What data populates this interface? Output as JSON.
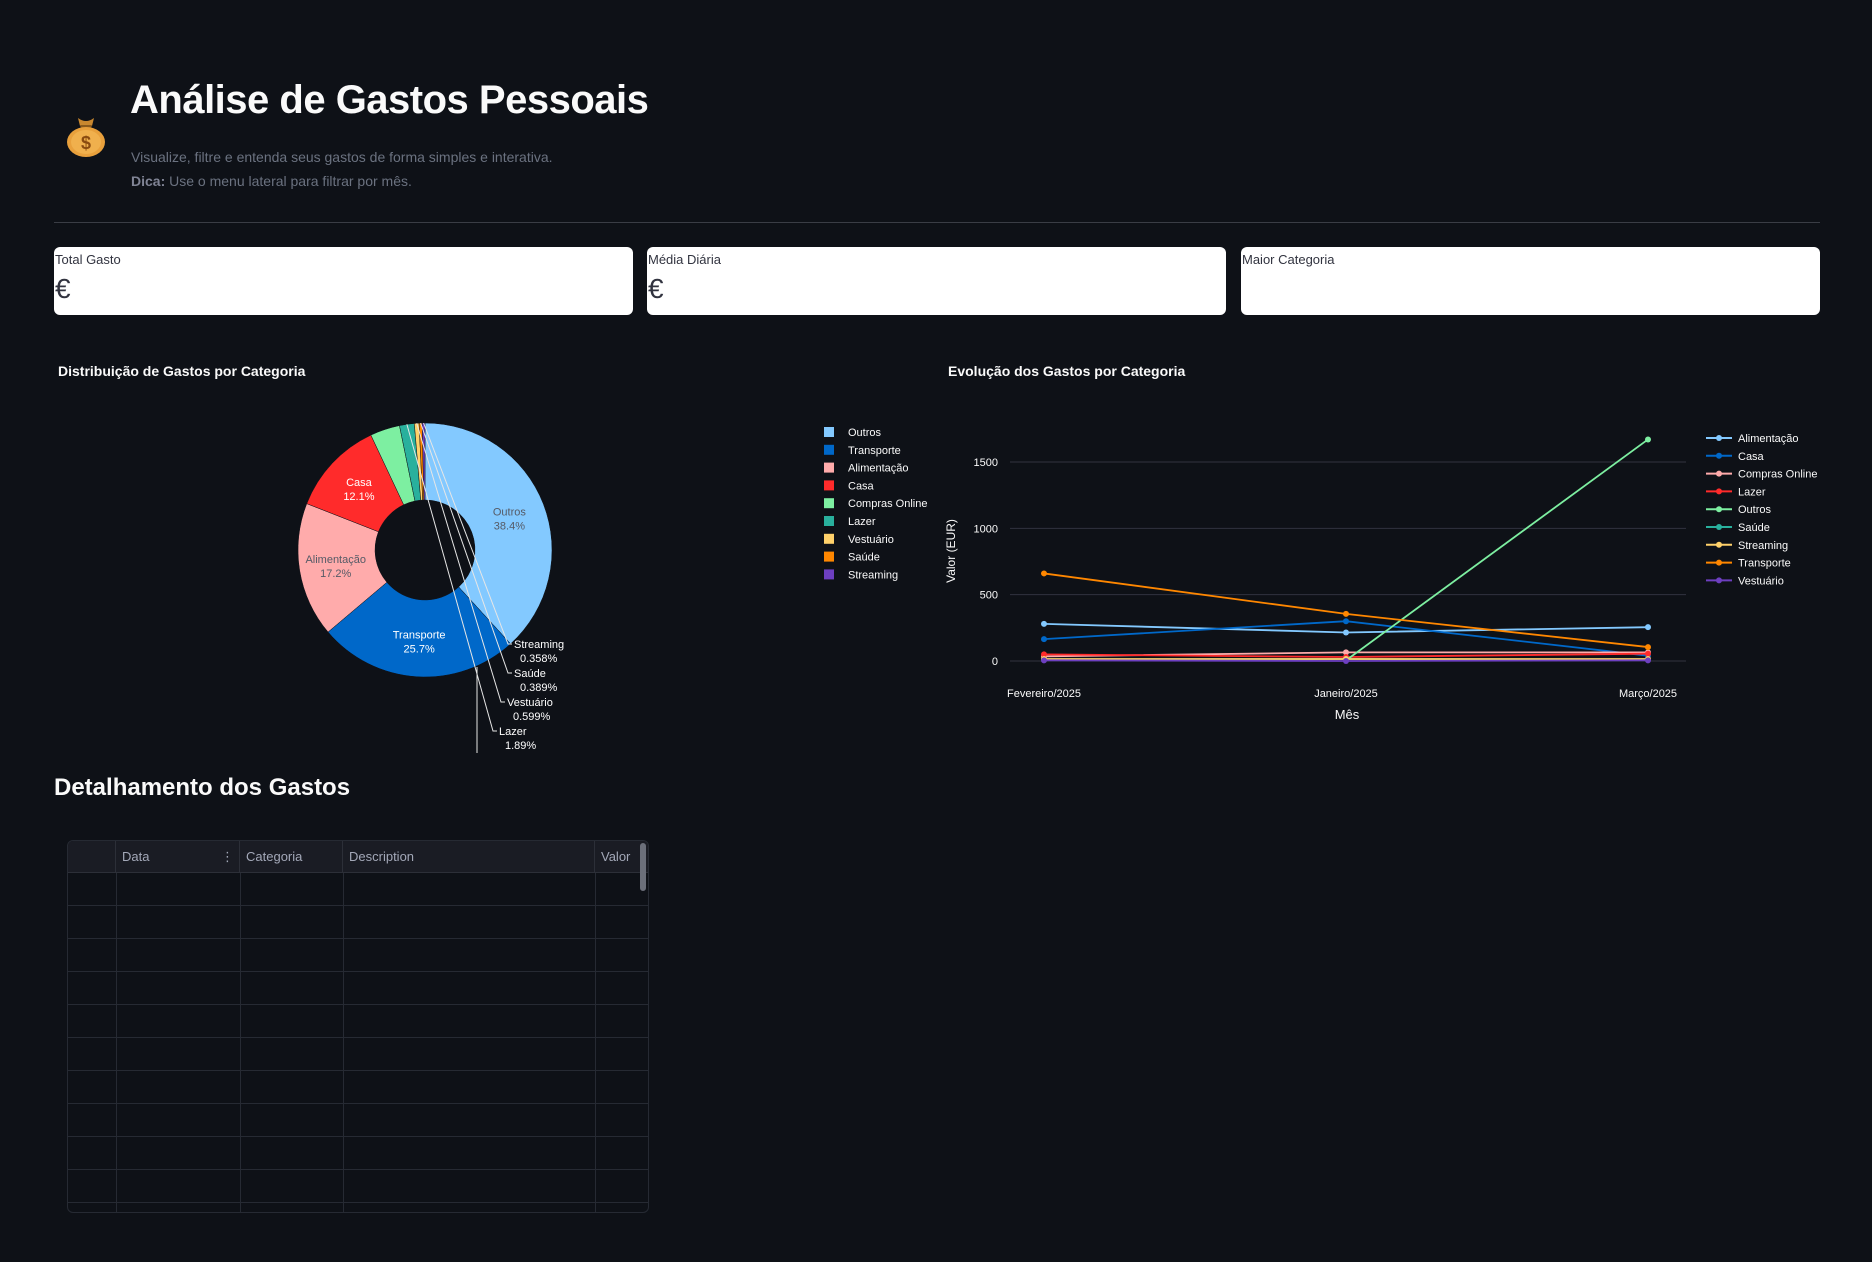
{
  "header": {
    "icon": "money-bag-icon",
    "title": "Análise de Gastos Pessoais",
    "subtitle": "Visualize, filtre e entenda seus gastos de forma simples e interativa.",
    "tip_label": "Dica:",
    "tip_text": " Use o menu lateral para filtrar por mês."
  },
  "metrics": [
    {
      "label": "Total Gasto",
      "value": "€"
    },
    {
      "label": "Média Diária",
      "value": "€"
    },
    {
      "label": "Maior Categoria",
      "value": ""
    }
  ],
  "pie_title": "Distribuição de Gastos por Categoria",
  "line_title": "Evolução dos Gastos por Categoria",
  "table": {
    "title": "Detalhamento dos Gastos",
    "columns": [
      "Data",
      "Categoria",
      "Description",
      "Valor"
    ],
    "menu_icon": "more-vertical-icon",
    "row_count": 10
  },
  "colors": {
    "background": "#0e1117",
    "Outros_pie": "#83c9ff",
    "Transporte_pie": "#0068c9",
    "Alimentação_pie": "#ffabab",
    "Casa_pie": "#ff2b2b",
    "Compras Online_pie": "#7defa1",
    "Lazer_pie": "#29b09d",
    "Vestuário_pie": "#ffd16a",
    "Saúde_pie": "#ff8700",
    "Streaming_pie": "#6d3fc0"
  },
  "chart_data": [
    {
      "type": "pie",
      "title": "Distribuição de Gastos por Categoria",
      "hole": true,
      "categories": [
        "Outros",
        "Transporte",
        "Alimentação",
        "Casa",
        "Compras Online",
        "Lazer",
        "Vestuário",
        "Saúde",
        "Streaming"
      ],
      "values": [
        38.4,
        25.7,
        17.2,
        12.1,
        3.8,
        1.89,
        0.599,
        0.389,
        0.358
      ],
      "labels": [
        "38.4%",
        "25.7%",
        "17.2%",
        "12.1%",
        "",
        "1.89%",
        "0.599%",
        "0.389%",
        "0.358%"
      ],
      "colors": [
        "#83c9ff",
        "#0068c9",
        "#ffabab",
        "#ff2b2b",
        "#7defa1",
        "#29b09d",
        "#ffd16a",
        "#ff8700",
        "#6d3fc0"
      ],
      "legend": "right"
    },
    {
      "type": "line",
      "title": "Evolução dos Gastos por Categoria",
      "xlabel": "Mês",
      "ylabel": "Valor (EUR)",
      "categories": [
        "Fevereiro/2025",
        "Janeiro/2025",
        "Março/2025"
      ],
      "yticks": [
        0,
        500,
        1000,
        1500
      ],
      "ylim": [
        -90,
        1800
      ],
      "grid": true,
      "legend": "right",
      "series": [
        {
          "name": "Alimentação",
          "color": "#83c9ff",
          "values": [
            280,
            215,
            255
          ]
        },
        {
          "name": "Casa",
          "color": "#0068c9",
          "values": [
            165,
            300,
            40
          ]
        },
        {
          "name": "Compras Online",
          "color": "#ffabab",
          "values": [
            35,
            65,
            65
          ]
        },
        {
          "name": "Lazer",
          "color": "#ff2b2b",
          "values": [
            50,
            30,
            55
          ]
        },
        {
          "name": "Outros",
          "color": "#7defa1",
          "values": [
            null,
            5,
            1670
          ]
        },
        {
          "name": "Saúde",
          "color": "#29b09d",
          "values": [
            10,
            15,
            10
          ]
        },
        {
          "name": "Streaming",
          "color": "#ffd16a",
          "values": [
            15,
            15,
            15
          ]
        },
        {
          "name": "Transporte",
          "color": "#ff8700",
          "values": [
            660,
            355,
            105
          ]
        },
        {
          "name": "Vestuário",
          "color": "#6d3fc0",
          "values": [
            5,
            0,
            5
          ]
        }
      ]
    }
  ]
}
